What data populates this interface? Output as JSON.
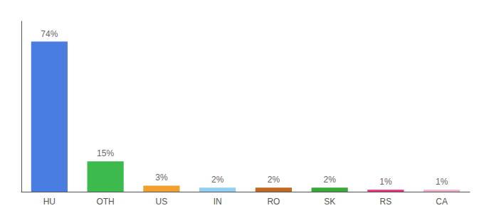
{
  "chart_data": {
    "type": "bar",
    "categories": [
      "HU",
      "OTH",
      "US",
      "IN",
      "RO",
      "SK",
      "RS",
      "CA"
    ],
    "values": [
      74,
      15,
      3,
      2,
      2,
      2,
      1,
      1
    ],
    "value_labels": [
      "74%",
      "15%",
      "3%",
      "2%",
      "2%",
      "2%",
      "1%",
      "1%"
    ],
    "colors": [
      "#4a7de0",
      "#3dba4e",
      "#f0a030",
      "#90d0f0",
      "#c06820",
      "#38a838",
      "#e8307a",
      "#f0b0c8"
    ],
    "ylim": [
      0,
      84
    ],
    "data_labels": true,
    "tick_labels": "x",
    "grid": false
  }
}
